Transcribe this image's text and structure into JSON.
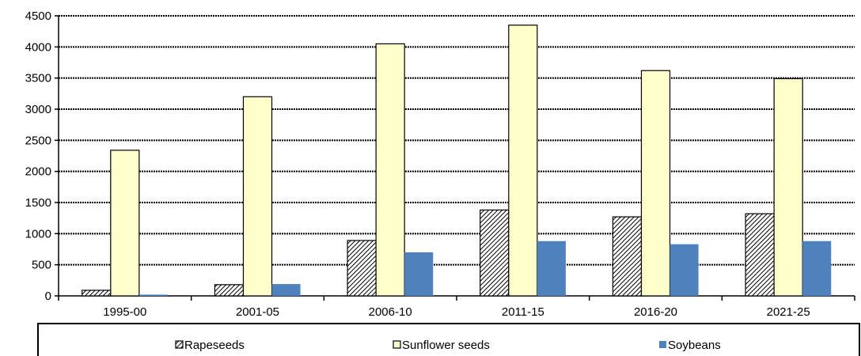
{
  "chart_data": {
    "type": "bar",
    "title": "",
    "xlabel": "",
    "ylabel": "",
    "categories": [
      "1995-00",
      "2001-05",
      "2006-10",
      "2011-15",
      "2016-20",
      "2021-25"
    ],
    "series": [
      {
        "name": "Rapeseeds",
        "values": [
          90,
          180,
          890,
          1380,
          1270,
          1320
        ],
        "color": "#c0c0c0",
        "pattern": "diagonal-hatch"
      },
      {
        "name": "Sunflower seeds",
        "values": [
          2340,
          3200,
          4050,
          4350,
          3620,
          3490
        ],
        "color": "#ffffcc",
        "pattern": "solid"
      },
      {
        "name": "Soybeans",
        "values": [
          20,
          190,
          700,
          880,
          830,
          880
        ],
        "color": "#4f81bd",
        "pattern": "solid"
      }
    ],
    "ylim": [
      0,
      4500
    ],
    "yticks": [
      0,
      500,
      1000,
      1500,
      2000,
      2500,
      3000,
      3500,
      4000,
      4500
    ],
    "grid": true,
    "legend_position": "bottom"
  }
}
